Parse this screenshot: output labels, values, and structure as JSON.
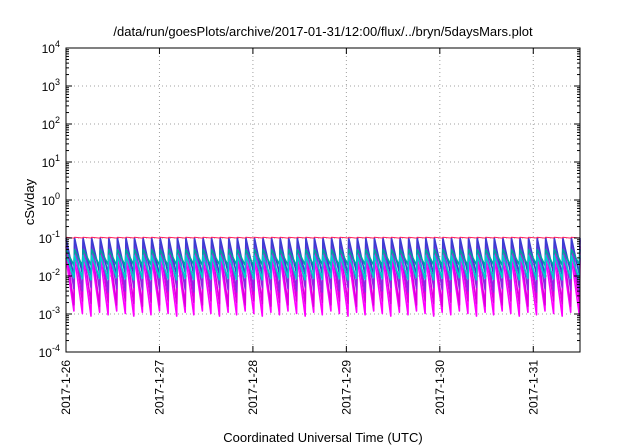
{
  "chart_data": {
    "type": "line",
    "title": "/data/run/goesPlots/archive/2017-01-31/12:00/flux/../bryn/5daysMars.plot",
    "xlabel": "Coordinated Universal Time (UTC)",
    "ylabel": "cSv/day",
    "y_scale": "log",
    "ylim": [
      0.0001,
      10000
    ],
    "y_ticks": [
      {
        "base": "10",
        "exp": "-4"
      },
      {
        "base": "10",
        "exp": "-3"
      },
      {
        "base": "10",
        "exp": "-2"
      },
      {
        "base": "10",
        "exp": "-1"
      },
      {
        "base": "10",
        "exp": "0"
      },
      {
        "base": "10",
        "exp": "1"
      },
      {
        "base": "10",
        "exp": "2"
      },
      {
        "base": "10",
        "exp": "3"
      },
      {
        "base": "10",
        "exp": "4"
      }
    ],
    "xlim": [
      "2017-01-26T00:00",
      "2017-01-31T12:00"
    ],
    "x_ticks": [
      "2017-1-26",
      "2017-1-27",
      "2017-1-28",
      "2017-1-29",
      "2017-1-30",
      "2017-1-31"
    ],
    "grid": true,
    "sawtooth_cycles": 60,
    "series": [
      {
        "color": "#ff00ff",
        "peak": 0.03,
        "trough": 0.0012
      },
      {
        "color": "#dd00dd",
        "peak": 0.06,
        "trough": 0.0022
      },
      {
        "color": "#8a2be2",
        "peak": 0.09,
        "trough": 0.005
      },
      {
        "color": "#3c3cd2",
        "peak": 0.1,
        "trough": 0.012
      },
      {
        "color": "#00a0a0",
        "peak": 0.05,
        "trough": 0.02
      },
      {
        "color": "#00cccc",
        "peak": 0.035,
        "trough": 0.009
      },
      {
        "color": "#ff2060",
        "peak": 0.105,
        "trough": 0.1
      }
    ]
  }
}
